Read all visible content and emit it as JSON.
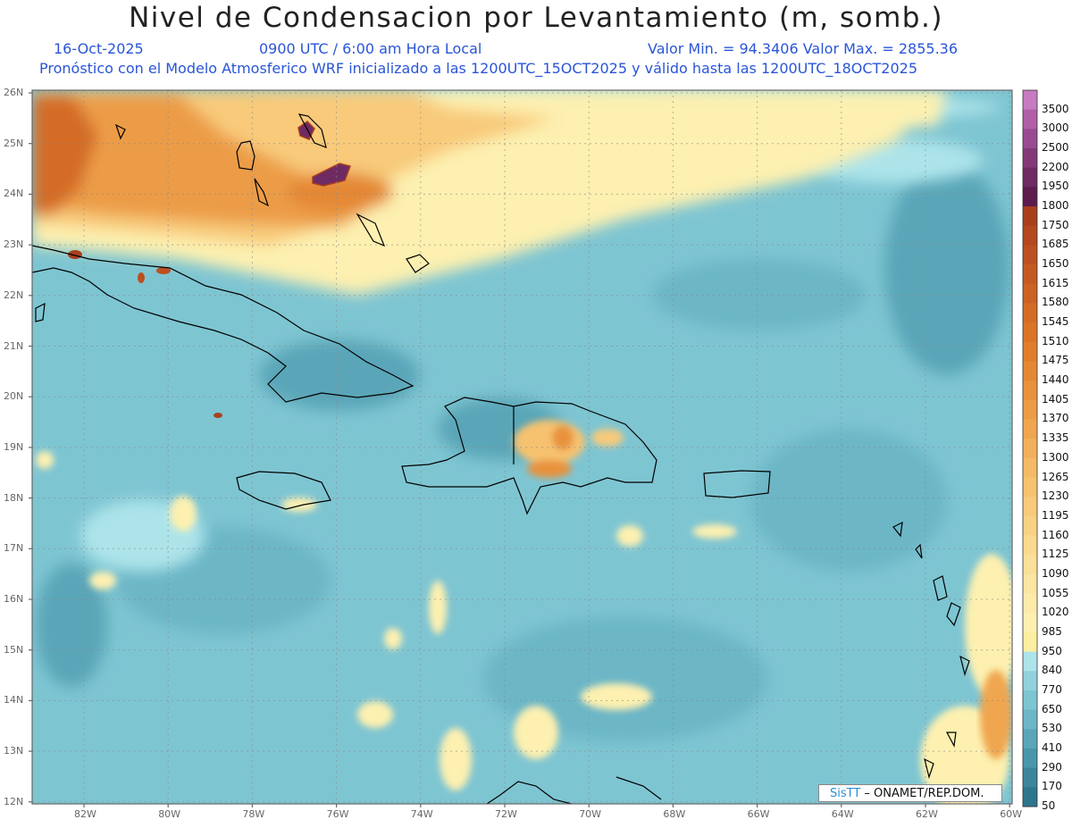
{
  "header": {
    "title": "Nivel de Condensacion por Levantamiento (m, somb.)",
    "date": "16-Oct-2025",
    "time": "0900 UTC / 6:00 am Hora Local",
    "minmax": "Valor Min. = 94.3406  Valor Max. = 2855.36",
    "model_line": "Pronóstico con el Modelo Atmosferico WRF inicializado a las 1200UTC_15OCT2025 y válido hasta las  1200UTC_18OCT2025"
  },
  "axes": {
    "lat_labels": [
      "26N",
      "25N",
      "24N",
      "23N",
      "22N",
      "21N",
      "20N",
      "19N",
      "18N",
      "17N",
      "16N",
      "15N",
      "14N",
      "13N",
      "12N"
    ],
    "lon_labels": [
      "82W",
      "80W",
      "78W",
      "76W",
      "74W",
      "72W",
      "70W",
      "68W",
      "66W",
      "64W",
      "62W",
      "60W"
    ]
  },
  "legend": {
    "levels": [
      "3500",
      "3000",
      "2500",
      "2200",
      "1950",
      "1800",
      "1750",
      "1685",
      "1650",
      "1615",
      "1580",
      "1545",
      "1510",
      "1475",
      "1440",
      "1405",
      "1370",
      "1335",
      "1300",
      "1265",
      "1230",
      "1195",
      "1160",
      "1125",
      "1090",
      "1055",
      "1020",
      "985",
      "950",
      "840",
      "770",
      "650",
      "530",
      "410",
      "290",
      "170",
      "50"
    ],
    "colors": [
      "#c77bc0",
      "#b25ea8",
      "#9a4a90",
      "#833878",
      "#6e2a62",
      "#5c1c4e",
      "#a8401c",
      "#b4481e",
      "#bc5020",
      "#c45a22",
      "#cc6224",
      "#d46c26",
      "#dc7428",
      "#e07e2c",
      "#e48834",
      "#e8923c",
      "#ec9c46",
      "#f0a650",
      "#f2b05c",
      "#f4ba66",
      "#f6c270",
      "#f8ca7a",
      "#f8d284",
      "#fada8e",
      "#fae098",
      "#fce6a2",
      "#fcebaa",
      "#fdf0b0",
      "#fbeea0",
      "#ade4ea",
      "#93d2dc",
      "#7ec5d2",
      "#6cb6c6",
      "#5aa6b8",
      "#4a96aa",
      "#3c869c",
      "#2e768e"
    ]
  },
  "credit": {
    "brand": "SisTT",
    "org": " – ONAMET/REP.DOM."
  }
}
